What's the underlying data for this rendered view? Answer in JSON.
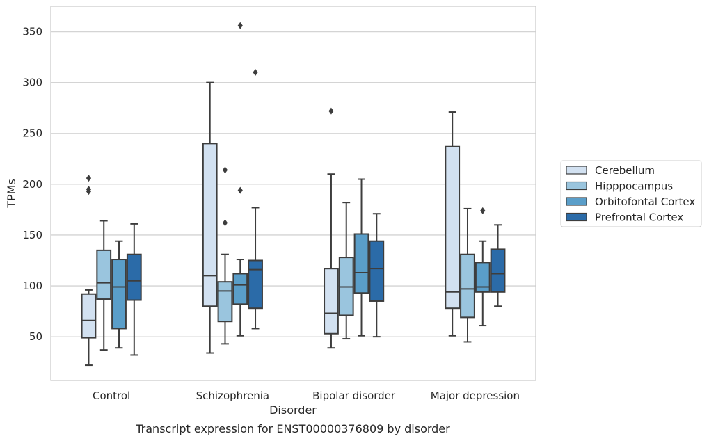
{
  "chart_data": {
    "type": "box",
    "title": "Transcript expression for ENST00000376809 by disorder",
    "xlabel": "Disorder",
    "ylabel": "TPMs",
    "ylim": [
      7,
      375
    ],
    "yticks": [
      50,
      100,
      150,
      200,
      250,
      300,
      350
    ],
    "grid": "horizontal",
    "legend_position": "right",
    "categories": [
      "Control",
      "Schizophrenia",
      "Bipolar disorder",
      "Major depression"
    ],
    "series": [
      {
        "name": "Cerebellum",
        "color": "#d2e1f1",
        "boxes": [
          {
            "whisker_low": 22,
            "q1": 49,
            "median": 66,
            "q3": 92,
            "whisker_high": 96,
            "outliers": [
              193,
              195,
              206
            ]
          },
          {
            "whisker_low": 34,
            "q1": 80,
            "median": 110,
            "q3": 240,
            "whisker_high": 300,
            "outliers": []
          },
          {
            "whisker_low": 39,
            "q1": 53,
            "median": 73,
            "q3": 117,
            "whisker_high": 210,
            "outliers": [
              272
            ]
          },
          {
            "whisker_low": 51,
            "q1": 78,
            "median": 94,
            "q3": 237,
            "whisker_high": 271,
            "outliers": []
          }
        ]
      },
      {
        "name": "Hipppocampus",
        "color": "#9ac5de",
        "boxes": [
          {
            "whisker_low": 37,
            "q1": 87,
            "median": 103,
            "q3": 135,
            "whisker_high": 164,
            "outliers": []
          },
          {
            "whisker_low": 43,
            "q1": 65,
            "median": 95,
            "q3": 104,
            "whisker_high": 131,
            "outliers": [
              162,
              214
            ]
          },
          {
            "whisker_low": 48,
            "q1": 71,
            "median": 99,
            "q3": 128,
            "whisker_high": 182,
            "outliers": []
          },
          {
            "whisker_low": 45,
            "q1": 69,
            "median": 97,
            "q3": 131,
            "whisker_high": 176,
            "outliers": []
          }
        ]
      },
      {
        "name": "Orbitofontal Cortex",
        "color": "#5a9ec9",
        "boxes": [
          {
            "whisker_low": 39,
            "q1": 58,
            "median": 99,
            "q3": 126,
            "whisker_high": 144,
            "outliers": []
          },
          {
            "whisker_low": 51,
            "q1": 82,
            "median": 101,
            "q3": 112,
            "whisker_high": 126,
            "outliers": [
              194,
              356
            ]
          },
          {
            "whisker_low": 51,
            "q1": 93,
            "median": 113,
            "q3": 151,
            "whisker_high": 205,
            "outliers": []
          },
          {
            "whisker_low": 61,
            "q1": 94,
            "median": 99,
            "q3": 123,
            "whisker_high": 144,
            "outliers": [
              174
            ]
          }
        ]
      },
      {
        "name": "Prefrontal Cortex",
        "color": "#2b6ba8",
        "boxes": [
          {
            "whisker_low": 32,
            "q1": 86,
            "median": 105,
            "q3": 131,
            "whisker_high": 161,
            "outliers": []
          },
          {
            "whisker_low": 58,
            "q1": 78,
            "median": 116,
            "q3": 125,
            "whisker_high": 177,
            "outliers": [
              310
            ]
          },
          {
            "whisker_low": 50,
            "q1": 85,
            "median": 117,
            "q3": 144,
            "whisker_high": 171,
            "outliers": []
          },
          {
            "whisker_low": 80,
            "q1": 94,
            "median": 112,
            "q3": 136,
            "whisker_high": 160,
            "outliers": []
          }
        ]
      }
    ]
  }
}
